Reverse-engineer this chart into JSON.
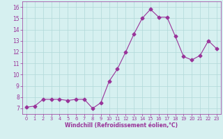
{
  "x": [
    0,
    1,
    2,
    3,
    4,
    5,
    6,
    7,
    8,
    9,
    10,
    11,
    12,
    13,
    14,
    15,
    16,
    17,
    18,
    19,
    20,
    21,
    22,
    23
  ],
  "y": [
    7.1,
    7.2,
    7.8,
    7.8,
    7.8,
    7.7,
    7.8,
    7.8,
    7.0,
    7.5,
    9.4,
    10.5,
    12.0,
    13.6,
    15.0,
    15.8,
    15.1,
    15.1,
    13.4,
    11.6,
    11.3,
    11.7,
    13.0,
    12.3
  ],
  "line_color": "#993399",
  "marker": "D",
  "marker_size": 2.5,
  "bg_color": "#d6f0f0",
  "grid_color": "#b0d8d8",
  "xlabel": "Windchill (Refroidissement éolien,°C)",
  "xlabel_color": "#993399",
  "tick_color": "#993399",
  "ylim": [
    6.5,
    16.5
  ],
  "xlim": [
    -0.5,
    23.5
  ],
  "yticks": [
    7,
    8,
    9,
    10,
    11,
    12,
    13,
    14,
    15,
    16
  ],
  "xticks": [
    0,
    1,
    2,
    3,
    4,
    5,
    6,
    7,
    8,
    9,
    10,
    11,
    12,
    13,
    14,
    15,
    16,
    17,
    18,
    19,
    20,
    21,
    22,
    23
  ]
}
